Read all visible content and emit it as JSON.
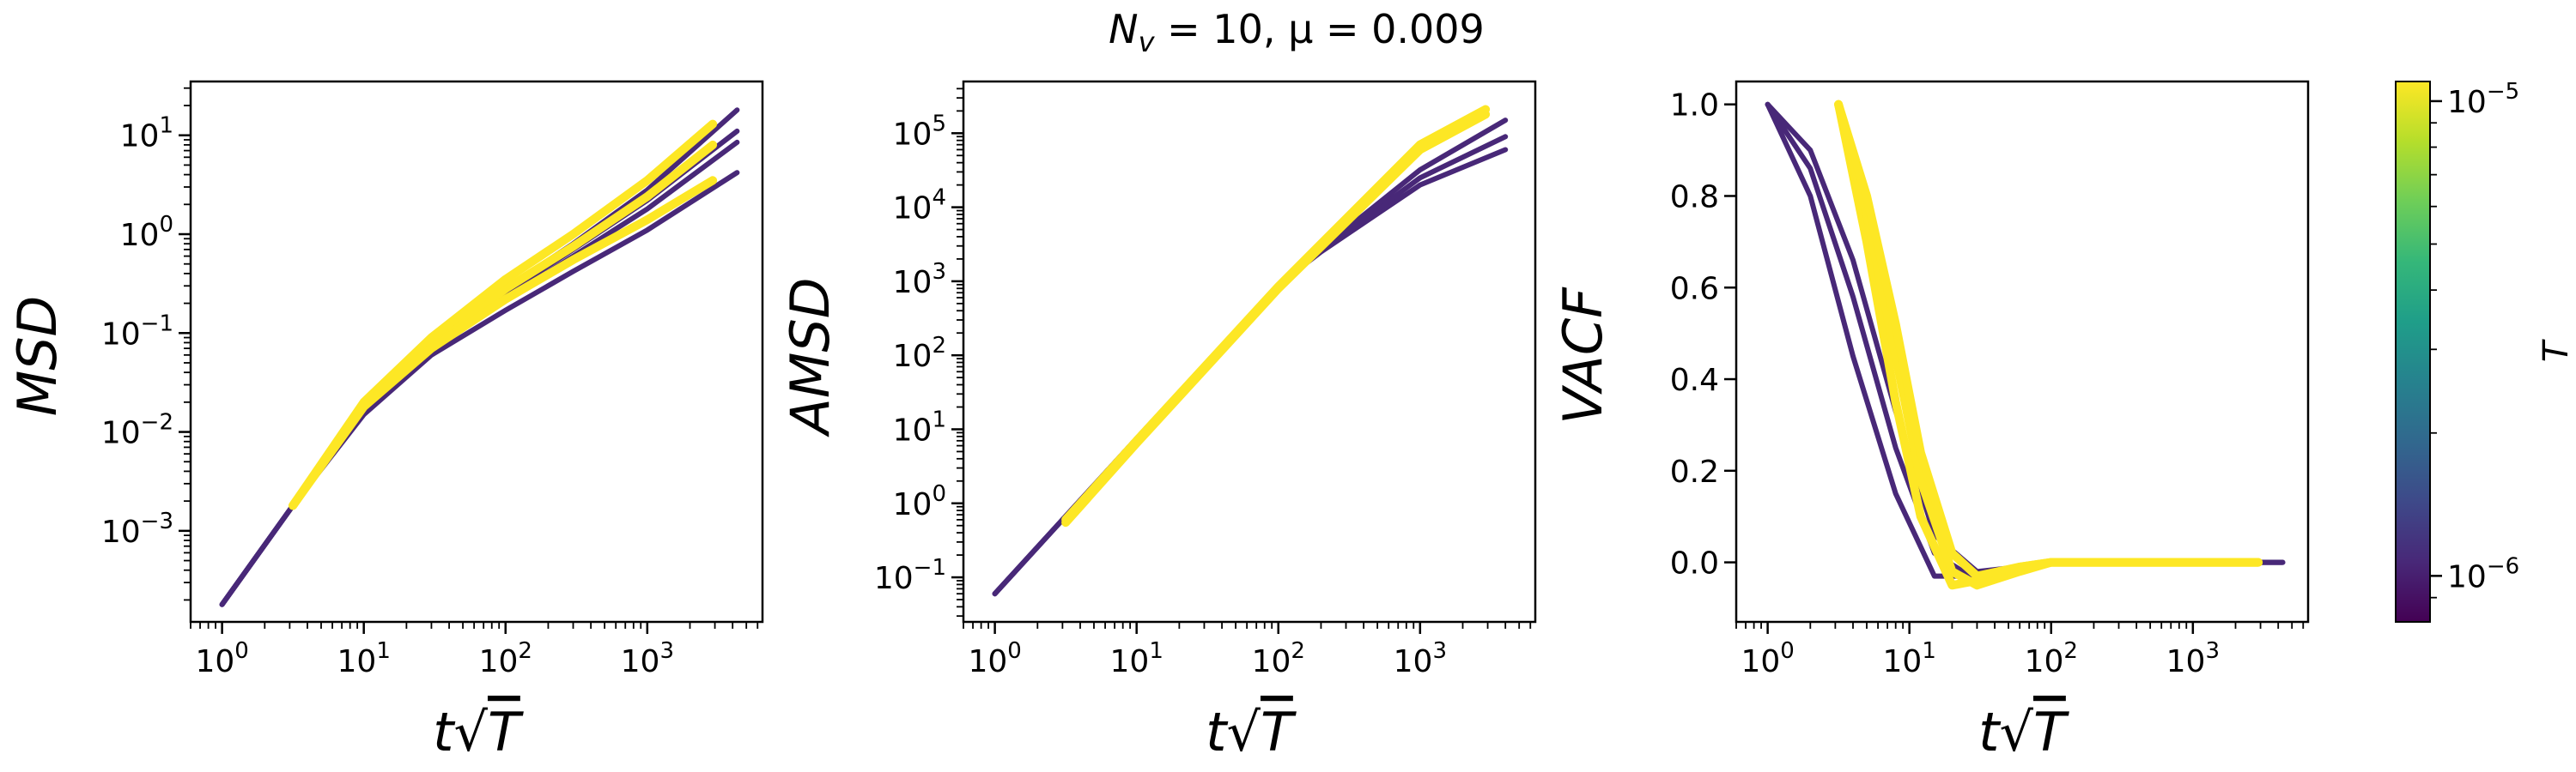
{
  "figure": {
    "title": "N_v = 10, μ = 0.009"
  },
  "colormap": {
    "name": "viridis",
    "low_color": "#440154",
    "high_color": "#fde725",
    "stops": [
      "#440154",
      "#482878",
      "#3e4989",
      "#31688e",
      "#26828e",
      "#1f9e89",
      "#35b779",
      "#6ece58",
      "#b5de2b",
      "#fde725"
    ]
  },
  "chart_data": [
    {
      "type": "line",
      "ylabel": "MSD",
      "xlabel": "t√T",
      "xscale": "log",
      "yscale": "log",
      "xlim": [
        0.6,
        6500
      ],
      "ylim": [
        0.00012,
        35
      ],
      "xticks": [
        1,
        10,
        100,
        1000
      ],
      "xtick_labels": [
        "10^0",
        "10^1",
        "10^2",
        "10^3"
      ],
      "yticks": [
        0.001,
        0.01,
        0.1,
        1,
        10
      ],
      "ytick_labels": [
        "10^-3",
        "10^-2",
        "10^-1",
        "10^0",
        "10^1"
      ],
      "series": [
        {
          "T": 1e-06,
          "x": [
            1,
            3.16,
            10,
            30,
            100,
            300,
            1000,
            4300
          ],
          "y": [
            0.00018,
            0.0018,
            0.015,
            0.06,
            0.17,
            0.42,
            1.1,
            4.2
          ]
        },
        {
          "T": 1e-06,
          "x": [
            1,
            3.16,
            10,
            30,
            100,
            300,
            1000,
            4300
          ],
          "y": [
            0.00018,
            0.0018,
            0.016,
            0.07,
            0.22,
            0.6,
            1.8,
            8.5
          ]
        },
        {
          "T": 1e-06,
          "x": [
            1,
            3.16,
            10,
            30,
            100,
            300,
            1000,
            4300
          ],
          "y": [
            0.00018,
            0.0018,
            0.017,
            0.08,
            0.28,
            0.8,
            2.8,
            18
          ]
        },
        {
          "T": 1e-06,
          "x": [
            1,
            3.16,
            10,
            30,
            100,
            300,
            1000,
            4300
          ],
          "y": [
            0.00018,
            0.0018,
            0.016,
            0.075,
            0.25,
            0.7,
            2.2,
            11
          ]
        },
        {
          "T": 1e-05,
          "x": [
            3.16,
            10,
            30,
            100,
            300,
            1000,
            2900
          ],
          "y": [
            0.0018,
            0.019,
            0.08,
            0.28,
            0.75,
            2.4,
            8
          ]
        },
        {
          "T": 1e-05,
          "x": [
            3.16,
            10,
            30,
            100,
            300,
            1000,
            2900
          ],
          "y": [
            0.0018,
            0.02,
            0.09,
            0.35,
            1.0,
            3.5,
            13
          ]
        },
        {
          "T": 1e-05,
          "x": [
            3.16,
            10,
            30,
            100,
            300,
            1000,
            2900
          ],
          "y": [
            0.0018,
            0.018,
            0.07,
            0.22,
            0.55,
            1.4,
            3.5
          ]
        }
      ]
    },
    {
      "type": "line",
      "ylabel": "AMSD",
      "xlabel": "t√T",
      "xscale": "log",
      "yscale": "log",
      "xlim": [
        0.6,
        6500
      ],
      "ylim": [
        0.025,
        500000
      ],
      "xticks": [
        1,
        10,
        100,
        1000
      ],
      "xtick_labels": [
        "10^0",
        "10^1",
        "10^2",
        "10^3"
      ],
      "yticks": [
        0.1,
        1,
        10,
        100,
        1000,
        10000,
        100000
      ],
      "ytick_labels": [
        "10^-1",
        "10^0",
        "10^1",
        "10^2",
        "10^3",
        "10^4",
        "10^5"
      ],
      "series": [
        {
          "T": 1e-06,
          "x": [
            1,
            10,
            100,
            200,
            1000,
            4000
          ],
          "y": [
            0.06,
            7.5,
            900,
            2500,
            20000,
            60000
          ]
        },
        {
          "T": 1e-06,
          "x": [
            1,
            10,
            100,
            200,
            1000,
            4000
          ],
          "y": [
            0.06,
            7.5,
            900,
            2600,
            25000,
            90000
          ]
        },
        {
          "T": 1e-06,
          "x": [
            1,
            10,
            100,
            200,
            1000,
            4000
          ],
          "y": [
            0.06,
            7.5,
            900,
            2700,
            32000,
            150000
          ]
        },
        {
          "T": 1e-05,
          "x": [
            3.16,
            10,
            100,
            1000,
            2900
          ],
          "y": [
            0.55,
            6.5,
            800,
            60000,
            180000
          ]
        },
        {
          "T": 1e-05,
          "x": [
            3.16,
            10,
            100,
            1000,
            2900
          ],
          "y": [
            0.6,
            7.0,
            850,
            70000,
            210000
          ]
        }
      ]
    },
    {
      "type": "line",
      "ylabel": "VACF",
      "xlabel": "t√T",
      "xscale": "log",
      "yscale": "linear",
      "xlim": [
        0.6,
        6500
      ],
      "ylim": [
        -0.13,
        1.05
      ],
      "xticks": [
        1,
        10,
        100,
        1000
      ],
      "xtick_labels": [
        "10^0",
        "10^1",
        "10^2",
        "10^3"
      ],
      "yticks": [
        0.0,
        0.2,
        0.4,
        0.6,
        0.8,
        1.0
      ],
      "ytick_labels": [
        "0.0",
        "0.2",
        "0.4",
        "0.6",
        "0.8",
        "1.0"
      ],
      "series": [
        {
          "T": 1e-06,
          "x": [
            1,
            2,
            4,
            8,
            15,
            30,
            60,
            100,
            300,
            1000,
            4300
          ],
          "y": [
            1.0,
            0.8,
            0.45,
            0.15,
            -0.03,
            -0.03,
            -0.01,
            0.0,
            0.0,
            0.0,
            0.0
          ]
        },
        {
          "T": 1e-06,
          "x": [
            1,
            2,
            4,
            8,
            15,
            30,
            60,
            100,
            300,
            1000,
            4300
          ],
          "y": [
            1.0,
            0.86,
            0.58,
            0.25,
            0.02,
            -0.04,
            -0.02,
            0.0,
            0.0,
            0.0,
            0.0
          ]
        },
        {
          "T": 1e-06,
          "x": [
            1,
            2,
            4,
            8,
            15,
            30,
            60,
            100,
            300,
            1000,
            4300
          ],
          "y": [
            1.0,
            0.9,
            0.66,
            0.33,
            0.06,
            -0.02,
            -0.01,
            0.0,
            0.0,
            0.0,
            0.0
          ]
        },
        {
          "T": 1e-05,
          "x": [
            3.16,
            5,
            8,
            12,
            20,
            30,
            60,
            100,
            300,
            1000,
            2900
          ],
          "y": [
            1.0,
            0.7,
            0.35,
            0.1,
            -0.05,
            -0.04,
            -0.01,
            0.0,
            0.0,
            0.0,
            0.0
          ]
        },
        {
          "T": 1e-05,
          "x": [
            3.16,
            5,
            8,
            12,
            20,
            30,
            60,
            100,
            300,
            1000,
            2900
          ],
          "y": [
            1.0,
            0.76,
            0.45,
            0.18,
            -0.02,
            -0.05,
            -0.02,
            0.0,
            0.0,
            0.0,
            0.0
          ]
        },
        {
          "T": 1e-05,
          "x": [
            3.16,
            5,
            8,
            12,
            20,
            30,
            60,
            100,
            300,
            1000,
            2900
          ],
          "y": [
            1.0,
            0.8,
            0.52,
            0.24,
            0.02,
            -0.03,
            -0.01,
            0.0,
            0.0,
            0.0,
            0.0
          ]
        }
      ]
    }
  ],
  "colorbar": {
    "label": "T",
    "scale": "log",
    "range": [
      8e-07,
      1.1e-05
    ],
    "ticks": [
      1e-06,
      1e-05
    ],
    "tick_labels": [
      "10^-6",
      "10^-5"
    ]
  }
}
